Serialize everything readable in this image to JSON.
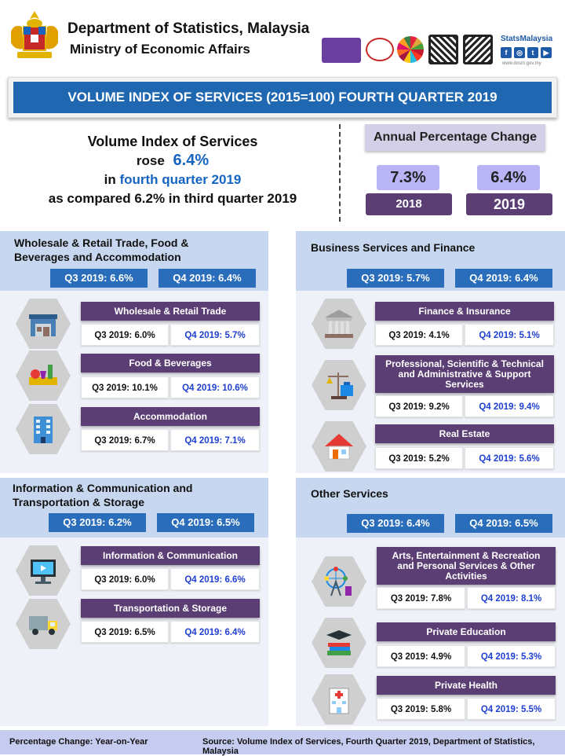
{
  "header": {
    "department": "Department of Statistics, Malaysia",
    "ministry": "Ministry of Economic Affairs",
    "brand": "StatsMalaysia",
    "social": [
      "f",
      "◎",
      "t",
      "▶"
    ],
    "site": "www.dosm.gov.my"
  },
  "title": "VOLUME INDEX OF SERVICES (2015=100) FOURTH QUARTER 2019",
  "summary": {
    "line1": "Volume Index of Services",
    "line2_pre": "rose",
    "line2_value": "6.4%",
    "line3_pre": "in",
    "line3_highlight": "fourth quarter 2019",
    "line4": "as compared 6.2% in third quarter 2019"
  },
  "annual": {
    "title": "Annual Percentage Change",
    "items": [
      {
        "value": "7.3%",
        "year": "2018"
      },
      {
        "value": "6.4%",
        "year": "2019"
      }
    ]
  },
  "sections": {
    "wholesale": {
      "title_1": "Wholesale & Retail Trade, Food &",
      "title_2": "Beverages and Accommodation",
      "q3": "Q3 2019: 6.6%",
      "q4": "Q4 2019: 6.4%",
      "cards": [
        {
          "title": "Wholesale & Retail Trade",
          "q3": "Q3 2019: 6.0%",
          "q4": "Q4 2019: 5.7%",
          "icon_label": "Warehouse"
        },
        {
          "title": "Food & Beverages",
          "q3": "Q3 2019: 10.1%",
          "q4": "Q4 2019: 10.6%"
        },
        {
          "title": "Accommodation",
          "q3": "Q3 2019: 6.7%",
          "q4": "Q4 2019: 7.1%",
          "icon_label": "HOTEL"
        }
      ]
    },
    "business": {
      "title": "Business Services and Finance",
      "q3": "Q3 2019: 5.7%",
      "q4": "Q4 2019: 6.4%",
      "cards": [
        {
          "title": "Finance & Insurance",
          "q3": "Q3 2019: 4.1%",
          "q4": "Q4 2019: 5.1%"
        },
        {
          "title_1": "Professional, Scientific & Technical",
          "title_2": "and Administrative & Support",
          "title_3": "Services",
          "q3": "Q3 2019: 9.2%",
          "q4": "Q4 2019: 9.4%"
        },
        {
          "title": "Real Estate",
          "q3": "Q3 2019: 5.2%",
          "q4": "Q4 2019: 5.6%"
        }
      ]
    },
    "info": {
      "title_1": "Information & Communication and",
      "title_2": "Transportation & Storage",
      "q3": "Q3 2019: 6.2%",
      "q4": "Q4 2019: 6.5%",
      "cards": [
        {
          "title": "Information & Communication",
          "q3": "Q3 2019: 6.0%",
          "q4": "Q4 2019: 6.6%"
        },
        {
          "title": "Transportation & Storage",
          "q3": "Q3 2019: 6.5%",
          "q4": "Q4 2019: 6.4%"
        }
      ]
    },
    "other": {
      "title": "Other Services",
      "q3": "Q3 2019: 6.4%",
      "q4": "Q4 2019: 6.5%",
      "cards": [
        {
          "title_1": "Arts, Entertainment & Recreation",
          "title_2": "and Personal Services & Other",
          "title_3": "Activities",
          "q3": "Q3 2019: 7.8%",
          "q4": "Q4 2019: 8.1%"
        },
        {
          "title": "Private Education",
          "q3": "Q3 2019: 4.9%",
          "q4": "Q4 2019: 5.3%"
        },
        {
          "title": "Private Health",
          "q3": "Q3 2019: 5.8%",
          "q4": "Q4 2019: 5.5%"
        }
      ]
    }
  },
  "footer": {
    "left": "Percentage Change: Year-on-Year",
    "right": "Source: Volume Index of Services, Fourth Quarter 2019, Department of Statistics, Malaysia"
  },
  "colors": {
    "title_bar": "#1f67b0",
    "card_title": "#5b3f74",
    "q4_text": "#1e3fd1",
    "section_pill": "#2a6dbb"
  }
}
